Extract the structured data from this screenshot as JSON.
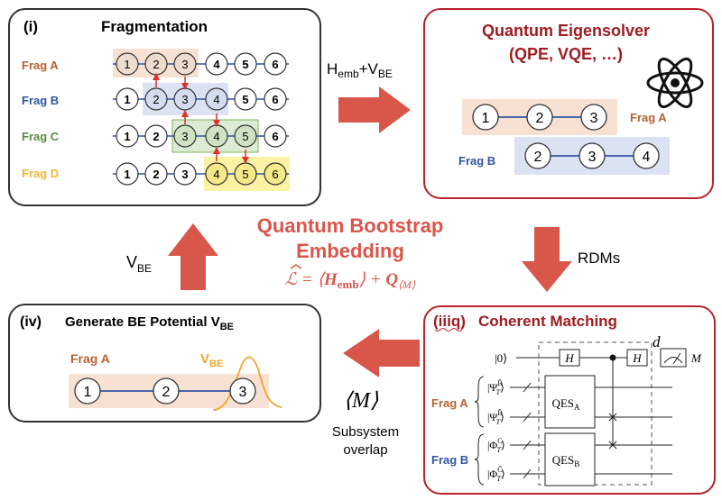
{
  "panel1": {
    "label": "(i)",
    "title": "Fragmentation",
    "rows": [
      {
        "label": "Frag A",
        "color": "#b5622f",
        "nodes": [
          "1",
          "2",
          "3",
          "4",
          "5",
          "6"
        ]
      },
      {
        "label": "Frag B",
        "color": "#2f55a4",
        "nodes": [
          "1",
          "2",
          "3",
          "4",
          "5",
          "6"
        ]
      },
      {
        "label": "Frag C",
        "color": "#5a8a3c",
        "nodes": [
          "1",
          "2",
          "3",
          "4",
          "5",
          "6"
        ]
      },
      {
        "label": "Frag D",
        "color": "#f2b634",
        "nodes": [
          "1",
          "2",
          "3",
          "4",
          "5",
          "6"
        ]
      }
    ]
  },
  "arrow_top": {
    "h": "H",
    "h_sub": "emb",
    "plus": "+V",
    "v_sub": "BE"
  },
  "panel2": {
    "title_line1": "Quantum Eigensolver",
    "title_line2": "(QPE, VQE, …)",
    "frag_a_label": "Frag A",
    "frag_a_nodes": [
      "1",
      "2",
      "3"
    ],
    "frag_b_label": "Frag B",
    "frag_b_nodes": [
      "2",
      "3",
      "4"
    ]
  },
  "arrow_right": {
    "label": "RDMs"
  },
  "center": {
    "title_line1": "Quantum Bootstrap",
    "title_line2": "Embedding",
    "eq_lhs": "ℒ = ⟨",
    "eq_h": "H",
    "eq_hsub": "emb",
    "eq_mid": "⟩ + ",
    "eq_q": "Q",
    "eq_qsub": "⟨M⟩"
  },
  "arrow_left": {
    "v": "V",
    "v_sub": "BE"
  },
  "panel4": {
    "label": "(iv)",
    "title": "Generate BE Potential V",
    "title_sub": "BE",
    "frag_label": "Frag A",
    "v_label": "V",
    "v_sub": "BE",
    "nodes": [
      "1",
      "2",
      "3"
    ]
  },
  "arrow_bottom": {
    "m": "⟨M⟩",
    "sub1": "Subsystem",
    "sub2": "overlap"
  },
  "panel3": {
    "label": "(iiiq)",
    "title": "Coherent Matching",
    "ket0": "|0⟩",
    "h1": "H",
    "h2": "H",
    "d": "d",
    "m": "M",
    "qes_a": "QES",
    "qes_a_sub": "A",
    "qes_b": "QES",
    "qes_b_sub": "B",
    "frag_a": "Frag A",
    "frag_b": "Frag B",
    "psi_top": "|Ψ",
    "psi_top_sup": "B̃",
    "psi_bot": "|Ψ",
    "psi_bot_sup": "B̃",
    "phi_top": "|Φ",
    "phi_top_sup": "C",
    "phi_bot": "|Φ",
    "phi_bot_sup": "C̃",
    "t_sub": "T",
    "ket_close": "⟩"
  },
  "colors": {
    "arrow": "#d9564a",
    "panel_border_gray": "#333333",
    "panel_border_red": "#b8232c",
    "title_red": "#9e1c22",
    "center_red": "#d9564a",
    "frag_a_bg": "#f7e1d3",
    "frag_b_bg": "#dbe3f3",
    "frag_c_bg": "#dcebd3",
    "frag_d_bg": "#fbf2a3",
    "frag_a": "#b5622f",
    "frag_b": "#2f55a4",
    "frag_c": "#5a8a3c",
    "frag_d": "#f2b634",
    "vbe_curve": "#f0a530"
  }
}
